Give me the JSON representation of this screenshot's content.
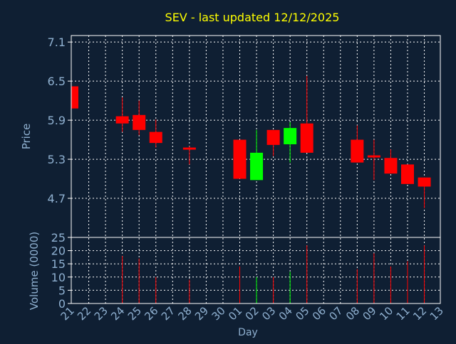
{
  "chart_data": {
    "type": "candlestick",
    "title": "SEV - last updated 12/12/2025",
    "xlabel": "Day",
    "ylabel_price": "Price",
    "ylabel_volume": "Volume (0000)",
    "x_ticks": [
      "21",
      "22",
      "23",
      "24",
      "25",
      "26",
      "27",
      "28",
      "29",
      "30",
      "01",
      "02",
      "03",
      "04",
      "05",
      "06",
      "07",
      "08",
      "09",
      "10",
      "11",
      "12",
      "13"
    ],
    "price_ylim": [
      4.1,
      7.2
    ],
    "price_yticks": [
      "4.7",
      "5.3",
      "5.9",
      "6.5",
      "7.1"
    ],
    "volume_ylim": [
      0,
      25
    ],
    "volume_yticks": [
      "0",
      "5",
      "10",
      "15",
      "20",
      "25"
    ],
    "grid": true,
    "colors": {
      "background": "#0f1f33",
      "text": "#8fb0d0",
      "title": "#ffff00",
      "up": "#00ff00",
      "down": "#ff0000",
      "grid": "#ffffff",
      "frame": "#ffffff"
    },
    "candles": [
      {
        "day": "21",
        "open": 6.42,
        "high": 6.42,
        "low": 6.08,
        "close": 6.08,
        "volume": 0
      },
      {
        "day": "24",
        "open": 5.96,
        "high": 6.25,
        "low": 5.72,
        "close": 5.85,
        "volume": 18
      },
      {
        "day": "25",
        "open": 5.98,
        "high": 6.2,
        "low": 5.67,
        "close": 5.75,
        "volume": 17
      },
      {
        "day": "26",
        "open": 5.72,
        "high": 5.91,
        "low": 5.48,
        "close": 5.55,
        "volume": 10
      },
      {
        "day": "28",
        "open": 5.48,
        "high": 5.5,
        "low": 5.22,
        "close": 5.46,
        "volume": 9
      },
      {
        "day": "01",
        "open": 5.6,
        "high": 5.6,
        "low": 5.0,
        "close": 5.0,
        "volume": 14
      },
      {
        "day": "02",
        "open": 4.98,
        "high": 5.75,
        "low": 4.98,
        "close": 5.4,
        "volume": 10
      },
      {
        "day": "03",
        "open": 5.75,
        "high": 5.75,
        "low": 5.35,
        "close": 5.52,
        "volume": 10
      },
      {
        "day": "04",
        "open": 5.53,
        "high": 5.87,
        "low": 5.25,
        "close": 5.78,
        "volume": 12
      },
      {
        "day": "05",
        "open": 5.85,
        "high": 6.58,
        "low": 5.4,
        "close": 5.4,
        "volume": 22
      },
      {
        "day": "08",
        "open": 5.6,
        "high": 5.82,
        "low": 5.25,
        "close": 5.25,
        "volume": 13
      },
      {
        "day": "09",
        "open": 5.36,
        "high": 5.6,
        "low": 4.98,
        "close": 5.33,
        "volume": 19
      },
      {
        "day": "10",
        "open": 5.32,
        "high": 5.45,
        "low": 5.08,
        "close": 5.08,
        "volume": 14
      },
      {
        "day": "11",
        "open": 5.22,
        "high": 5.22,
        "low": 4.92,
        "close": 4.92,
        "volume": 16
      },
      {
        "day": "12",
        "open": 5.02,
        "high": 5.02,
        "low": 4.55,
        "close": 4.88,
        "volume": 22
      }
    ]
  }
}
